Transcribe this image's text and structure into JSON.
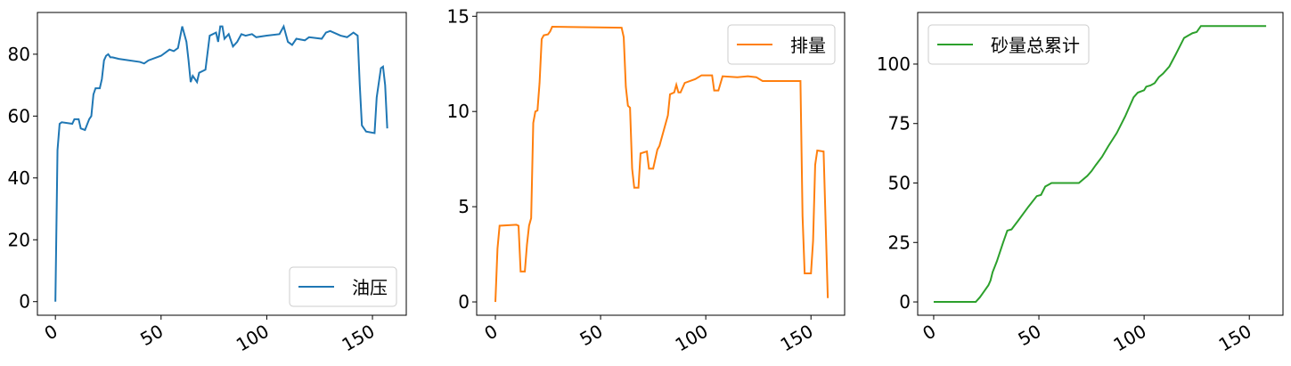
{
  "chart_data": [
    {
      "type": "line",
      "legend": "lower right",
      "xlim": [
        -8.5,
        166
      ],
      "ylim": [
        -4.4,
        93.5
      ],
      "xticks": [
        0,
        50,
        100,
        150
      ],
      "yticks": [
        0,
        20,
        40,
        60,
        80
      ],
      "x": [
        0,
        1,
        2,
        3,
        8,
        9,
        11,
        12,
        14,
        16,
        17,
        18,
        19,
        21,
        22,
        23,
        24,
        25,
        26,
        27,
        30,
        40,
        42,
        44,
        50,
        54,
        56,
        58,
        60,
        62,
        63,
        64,
        65,
        67,
        68,
        71,
        73,
        76,
        77,
        78,
        79,
        80,
        82,
        84,
        86,
        88,
        90,
        93,
        95,
        100,
        106,
        108,
        110,
        112,
        114,
        118,
        120,
        126,
        128,
        130,
        135,
        138,
        141,
        143,
        144,
        145,
        147,
        151,
        152,
        154,
        155,
        156,
        157
      ],
      "series": [
        {
          "name": "油压",
          "color": "#1f77b4",
          "values": [
            0,
            49,
            57.5,
            58,
            57.5,
            59,
            59,
            56,
            55.5,
            59,
            60,
            67,
            69,
            69,
            72,
            78,
            79.5,
            80,
            79,
            79,
            78.5,
            77.5,
            77,
            78,
            79.5,
            81.5,
            81,
            82,
            89,
            84,
            78,
            71,
            73,
            71,
            74,
            75,
            86,
            87,
            84,
            89,
            89,
            85,
            86.5,
            82.5,
            84,
            86.5,
            86,
            86.5,
            85.5,
            86,
            86.5,
            89,
            84,
            83,
            85,
            84.5,
            85.5,
            85,
            87,
            87.5,
            86,
            85.5,
            87,
            86,
            70,
            57,
            55,
            54.5,
            66,
            75.5,
            76,
            70,
            56
          ]
        }
      ]
    },
    {
      "type": "line",
      "legend": "upper right",
      "xlim": [
        -8.9,
        166
      ],
      "ylim": [
        -0.7,
        15.2
      ],
      "xticks": [
        0,
        50,
        100,
        150
      ],
      "yticks": [
        0,
        5,
        10,
        15
      ],
      "x": [
        0,
        1,
        2,
        10,
        11,
        12,
        14,
        15,
        16,
        17,
        18,
        19,
        20,
        21,
        22,
        23,
        25,
        26,
        27,
        60,
        61,
        62,
        63,
        64,
        65,
        66,
        68,
        69,
        72,
        73,
        75,
        77,
        78,
        80,
        82,
        83,
        85,
        86,
        87,
        88,
        90,
        95,
        98,
        103,
        104,
        106,
        108,
        115,
        120,
        124,
        127,
        145,
        146,
        147,
        150,
        151,
        152,
        153,
        156,
        158
      ],
      "series": [
        {
          "name": "排量",
          "color": "#ff7f0e",
          "values": [
            0,
            2.8,
            4.0,
            4.05,
            4.0,
            1.6,
            1.6,
            3,
            4.0,
            4.4,
            9.4,
            10.0,
            10.05,
            11.5,
            13.8,
            14.0,
            14.05,
            14.2,
            14.45,
            14.4,
            13.9,
            11.3,
            10.3,
            10.2,
            7.0,
            6.0,
            6.0,
            7.8,
            7.9,
            7.0,
            7.0,
            8.0,
            8.2,
            9.0,
            9.8,
            10.9,
            11.0,
            11.4,
            11.0,
            11.0,
            11.5,
            11.7,
            11.9,
            11.9,
            11.1,
            11.1,
            11.85,
            11.8,
            11.85,
            11.8,
            11.6,
            11.6,
            4.5,
            1.5,
            1.5,
            3.2,
            7.2,
            7.95,
            7.9,
            0.2
          ]
        }
      ]
    },
    {
      "type": "line",
      "legend": "upper left",
      "xlim": [
        -7.6,
        166
      ],
      "ylim": [
        -5.6,
        121.7
      ],
      "xticks": [
        0,
        50,
        100,
        150
      ],
      "yticks": [
        0,
        25,
        50,
        75,
        100
      ],
      "x": [
        0,
        20,
        22,
        24,
        26,
        27,
        28,
        30,
        33,
        35,
        37,
        40,
        45,
        49,
        51,
        53,
        55,
        56,
        69,
        73,
        75,
        77,
        80,
        83,
        87,
        91,
        92,
        95,
        97,
        100,
        101,
        103,
        105,
        107,
        109,
        112,
        115,
        117,
        119,
        121,
        123,
        125,
        127,
        130,
        145,
        158
      ],
      "series": [
        {
          "name": "砂量总累计",
          "color": "#2ca02c",
          "values": [
            0,
            0,
            2,
            4.5,
            7,
            9,
            12.5,
            17,
            25,
            30,
            30.5,
            34,
            40,
            44.5,
            45,
            48.5,
            49.5,
            50,
            50,
            53,
            55,
            57.5,
            61,
            65.5,
            71,
            78,
            80,
            86,
            88,
            89,
            90.5,
            91,
            92,
            94.5,
            96,
            99,
            104,
            107.5,
            111,
            112,
            113,
            113.5,
            116,
            116,
            116,
            116
          ]
        }
      ]
    }
  ]
}
